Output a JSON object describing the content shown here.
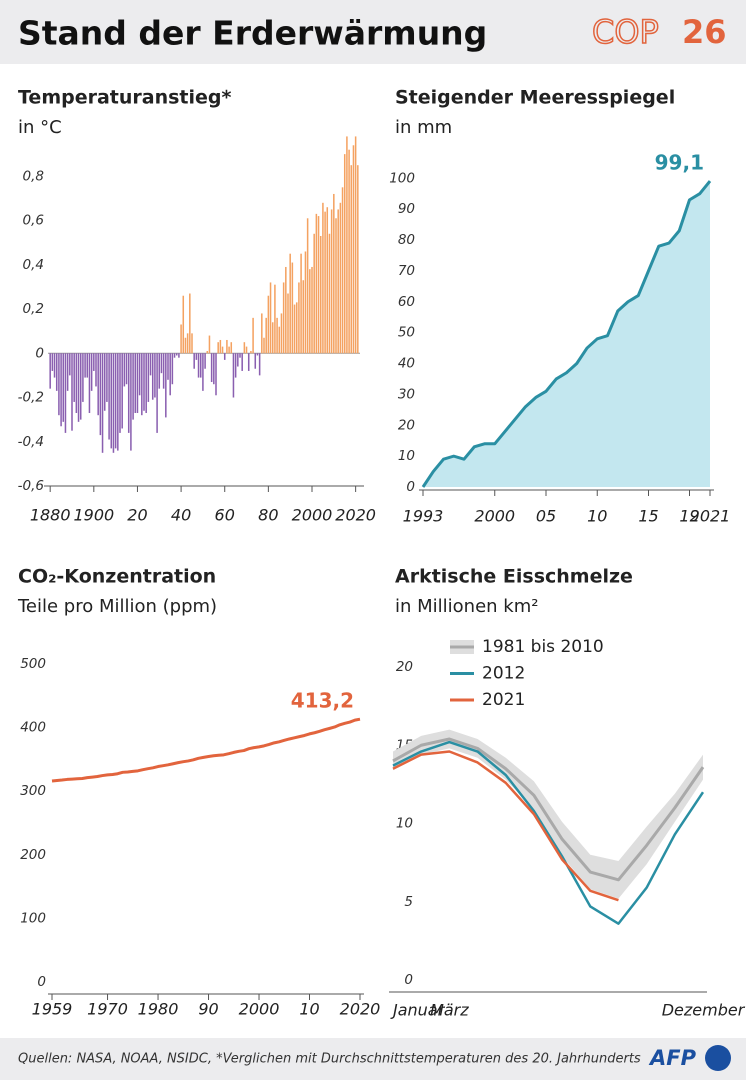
{
  "header": {
    "title": "Stand der Erderwärmung",
    "logo_text": "COP",
    "logo_number": "26"
  },
  "chart_data": [
    {
      "type": "bar",
      "title": "Temperaturanstieg*",
      "subtitle": "in °C",
      "x": [
        1880,
        1881,
        1882,
        1883,
        1884,
        1885,
        1886,
        1887,
        1888,
        1889,
        1890,
        1891,
        1892,
        1893,
        1894,
        1895,
        1896,
        1897,
        1898,
        1899,
        1900,
        1901,
        1902,
        1903,
        1904,
        1905,
        1906,
        1907,
        1908,
        1909,
        1910,
        1911,
        1912,
        1913,
        1914,
        1915,
        1916,
        1917,
        1918,
        1919,
        1920,
        1921,
        1922,
        1923,
        1924,
        1925,
        1926,
        1927,
        1928,
        1929,
        1930,
        1931,
        1932,
        1933,
        1934,
        1935,
        1936,
        1937,
        1938,
        1939,
        1940,
        1941,
        1942,
        1943,
        1944,
        1945,
        1946,
        1947,
        1948,
        1949,
        1950,
        1951,
        1952,
        1953,
        1954,
        1955,
        1956,
        1957,
        1958,
        1959,
        1960,
        1961,
        1962,
        1963,
        1964,
        1965,
        1966,
        1967,
        1968,
        1969,
        1970,
        1971,
        1972,
        1973,
        1974,
        1975,
        1976,
        1977,
        1978,
        1979,
        1980,
        1981,
        1982,
        1983,
        1984,
        1985,
        1986,
        1987,
        1988,
        1989,
        1990,
        1991,
        1992,
        1993,
        1994,
        1995,
        1996,
        1997,
        1998,
        1999,
        2000,
        2001,
        2002,
        2003,
        2004,
        2005,
        2006,
        2007,
        2008,
        2009,
        2010,
        2011,
        2012,
        2013,
        2014,
        2015,
        2016,
        2017,
        2018,
        2019,
        2020,
        2021
      ],
      "values": [
        -0.16,
        -0.08,
        -0.11,
        -0.17,
        -0.28,
        -0.33,
        -0.31,
        -0.36,
        -0.17,
        -0.1,
        -0.35,
        -0.22,
        -0.27,
        -0.31,
        -0.3,
        -0.22,
        -0.11,
        -0.11,
        -0.27,
        -0.17,
        -0.08,
        -0.15,
        -0.28,
        -0.37,
        -0.45,
        -0.26,
        -0.22,
        -0.39,
        -0.43,
        -0.45,
        -0.43,
        -0.44,
        -0.36,
        -0.34,
        -0.15,
        -0.14,
        -0.36,
        -0.44,
        -0.3,
        -0.27,
        -0.27,
        -0.19,
        -0.28,
        -0.26,
        -0.27,
        -0.22,
        -0.1,
        -0.21,
        -0.2,
        -0.36,
        -0.16,
        -0.09,
        -0.16,
        -0.29,
        -0.12,
        -0.19,
        -0.14,
        -0.02,
        -0.01,
        -0.02,
        0.13,
        0.26,
        0.07,
        0.09,
        0.27,
        0.09,
        -0.07,
        -0.03,
        -0.11,
        -0.11,
        -0.17,
        -0.07,
        0.01,
        0.08,
        -0.13,
        -0.14,
        -0.19,
        0.05,
        0.06,
        0.03,
        -0.03,
        0.06,
        0.03,
        0.05,
        -0.2,
        -0.11,
        -0.06,
        -0.02,
        -0.08,
        0.05,
        0.03,
        -0.08,
        0.01,
        0.16,
        -0.07,
        -0.01,
        -0.1,
        0.18,
        0.07,
        0.16,
        0.26,
        0.32,
        0.14,
        0.31,
        0.16,
        0.12,
        0.18,
        0.32,
        0.39,
        0.27,
        0.45,
        0.41,
        0.22,
        0.23,
        0.32,
        0.45,
        0.33,
        0.46,
        0.61,
        0.38,
        0.39,
        0.54,
        0.63,
        0.62,
        0.53,
        0.68,
        0.64,
        0.66,
        0.54,
        0.65,
        0.72,
        0.61,
        0.65,
        0.68,
        0.75,
        0.9,
        0.98,
        0.92,
        0.85,
        0.94,
        0.98,
        0.85
      ],
      "colors": {
        "positive": "#f4a261",
        "negative": "#8a5fb0"
      },
      "xlim": [
        1879,
        2022
      ],
      "xticks": [
        1880,
        1900,
        {
          "value": 1920,
          "label": "20"
        },
        {
          "value": 1940,
          "label": "40"
        },
        {
          "value": 1960,
          "label": "60"
        },
        {
          "value": 1980,
          "label": "80"
        },
        2000,
        2020
      ],
      "ylim": [
        -0.6,
        1.0
      ],
      "yticks": [
        {
          "value": -0.6,
          "label": "-0,6"
        },
        {
          "value": -0.4,
          "label": "-0,4"
        },
        {
          "value": -0.2,
          "label": "-0,2"
        },
        0,
        {
          "value": 0.2,
          "label": "0,2"
        },
        {
          "value": 0.4,
          "label": "0,4"
        },
        {
          "value": 0.6,
          "label": "0,6"
        },
        {
          "value": 0.8,
          "label": "0,8"
        }
      ],
      "grid": false,
      "zero_line": true
    },
    {
      "type": "area",
      "title": "Steigender Meeresspiegel",
      "subtitle": "in mm",
      "x": [
        1993,
        1994,
        1995,
        1996,
        1997,
        1998,
        1999,
        2000,
        2001,
        2002,
        2003,
        2004,
        2005,
        2006,
        2007,
        2008,
        2009,
        2010,
        2011,
        2012,
        2013,
        2014,
        2015,
        2016,
        2017,
        2018,
        2019,
        2020,
        2021
      ],
      "values": [
        0,
        5,
        9,
        10,
        9,
        13,
        14,
        14,
        18,
        22,
        26,
        29,
        31,
        35,
        37,
        40,
        45,
        48,
        49,
        57,
        60,
        62,
        70,
        78,
        79,
        83,
        93,
        95,
        99.1
      ],
      "value_labels": [
        null,
        null,
        null,
        null,
        null,
        null,
        null,
        null,
        null,
        null,
        null,
        null,
        null,
        null,
        null,
        null,
        null,
        null,
        null,
        null,
        null,
        null,
        null,
        null,
        null,
        null,
        null,
        null,
        "99,1"
      ],
      "color": "#2a8fa3",
      "fill": "#c3e7ef",
      "xlim": [
        1993,
        2021
      ],
      "xticks": [
        1993,
        2000,
        {
          "value": 2005,
          "label": "05"
        },
        {
          "value": 2010,
          "label": "10"
        },
        {
          "value": 2015,
          "label": "15"
        },
        {
          "value": 2019,
          "label": "19"
        },
        2021
      ],
      "ylim": [
        0,
        103
      ],
      "yticks": [
        0,
        10,
        20,
        30,
        40,
        50,
        60,
        70,
        80,
        90,
        100
      ],
      "grid": false
    },
    {
      "type": "line",
      "title": "CO₂-Konzentration",
      "subtitle": "Teile pro Million (ppm)",
      "x": [
        1959,
        1960,
        1961,
        1962,
        1963,
        1964,
        1965,
        1966,
        1967,
        1968,
        1969,
        1970,
        1971,
        1972,
        1973,
        1974,
        1975,
        1976,
        1977,
        1978,
        1979,
        1980,
        1981,
        1982,
        1983,
        1984,
        1985,
        1986,
        1987,
        1988,
        1989,
        1990,
        1991,
        1992,
        1993,
        1994,
        1995,
        1996,
        1997,
        1998,
        1999,
        2000,
        2001,
        2002,
        2003,
        2004,
        2005,
        2006,
        2007,
        2008,
        2009,
        2010,
        2011,
        2012,
        2013,
        2014,
        2015,
        2016,
        2017,
        2018,
        2019,
        2020
      ],
      "values": [
        316.0,
        316.9,
        317.6,
        318.5,
        319.0,
        319.6,
        320.0,
        321.4,
        322.2,
        323.1,
        324.6,
        325.7,
        326.3,
        327.5,
        329.7,
        330.2,
        331.1,
        332.0,
        333.8,
        335.4,
        336.8,
        338.8,
        340.1,
        341.5,
        343.2,
        344.9,
        346.4,
        347.6,
        349.3,
        351.7,
        353.2,
        354.5,
        355.7,
        356.5,
        357.2,
        359.0,
        361.0,
        362.7,
        363.9,
        366.8,
        368.5,
        369.7,
        371.3,
        373.5,
        376.0,
        377.7,
        380.0,
        382.1,
        384.0,
        385.8,
        387.6,
        390.1,
        391.9,
        394.1,
        396.7,
        398.8,
        401.0,
        404.4,
        406.8,
        408.7,
        411.7,
        413.2
      ],
      "value_labels": [
        null,
        null,
        null,
        null,
        null,
        null,
        null,
        null,
        null,
        null,
        null,
        null,
        null,
        null,
        null,
        null,
        null,
        null,
        null,
        null,
        null,
        null,
        null,
        null,
        null,
        null,
        null,
        null,
        null,
        null,
        null,
        null,
        null,
        null,
        null,
        null,
        null,
        null,
        null,
        null,
        null,
        null,
        null,
        null,
        null,
        null,
        null,
        null,
        null,
        null,
        null,
        null,
        null,
        null,
        null,
        null,
        null,
        null,
        null,
        null,
        null,
        "413,2"
      ],
      "color": "#e2643d",
      "xlim": [
        1959,
        2020
      ],
      "xticks": [
        1959,
        1970,
        1980,
        {
          "value": 1990,
          "label": "90"
        },
        2000,
        {
          "value": 2010,
          "label": "10"
        },
        2020
      ],
      "ylim": [
        0,
        500
      ],
      "yticks": [
        0,
        100,
        200,
        300,
        400,
        500
      ],
      "grid": false
    },
    {
      "type": "line",
      "title": "Arktische Eisschmelze",
      "subtitle": "in Millionen km²",
      "categories": [
        "Januar",
        null,
        "März",
        null,
        null,
        null,
        null,
        null,
        null,
        null,
        null,
        "Dezember"
      ],
      "series": [
        {
          "name": "1981 bis 2010",
          "color": "#a9a9a9",
          "band_color": "#dedede",
          "values": [
            14.0,
            15.0,
            15.4,
            14.8,
            13.5,
            11.8,
            9.0,
            6.9,
            6.4,
            8.6,
            11.0,
            13.6
          ],
          "range_low": [
            13.4,
            14.4,
            14.8,
            14.2,
            12.8,
            10.9,
            7.9,
            5.8,
            5.2,
            7.4,
            10.1,
            12.8
          ],
          "range_high": [
            14.6,
            15.6,
            16.0,
            15.4,
            14.2,
            12.7,
            10.1,
            8.0,
            7.6,
            9.8,
            11.9,
            14.4
          ]
        },
        {
          "name": "2012",
          "color": "#2a8fa3",
          "values": [
            13.7,
            14.6,
            15.2,
            14.6,
            13.1,
            10.8,
            7.9,
            4.7,
            3.6,
            5.9,
            9.3,
            12.0
          ]
        },
        {
          "name": "2021",
          "color": "#e2643d",
          "values": [
            13.5,
            14.4,
            14.6,
            13.9,
            12.6,
            10.6,
            7.7,
            5.7,
            5.1,
            null,
            null,
            null
          ]
        }
      ],
      "ylim": [
        0,
        20
      ],
      "yticks": [
        0,
        5,
        10,
        15,
        20
      ],
      "grid": false,
      "legend": "upper left"
    }
  ],
  "footer": {
    "source": "Quellen: NASA, NOAA, NSIDC, *Verglichen mit Durchschnittstemperaturen des 20. Jahrhunderts",
    "logo": "AFP"
  }
}
